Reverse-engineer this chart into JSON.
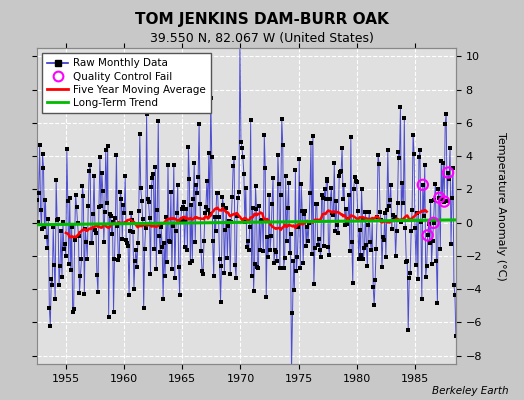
{
  "title": "TOM JENKINS DAM-BURR OAK",
  "subtitle": "39.550 N, 82.067 W (United States)",
  "ylabel": "Temperature Anomaly (°C)",
  "credit": "Berkeley Earth",
  "xlim": [
    1952.5,
    1988.5
  ],
  "ylim": [
    -8.5,
    10.5
  ],
  "yticks": [
    -8,
    -6,
    -4,
    -2,
    0,
    2,
    4,
    6,
    8,
    10
  ],
  "xticks": [
    1955,
    1960,
    1965,
    1970,
    1975,
    1980,
    1985
  ],
  "bg_color": "#c8c8c8",
  "plot_bg_color": "#e0e0e0",
  "grid_color": "#ffffff",
  "raw_line_color": "#3333cc",
  "raw_marker_color": "#000000",
  "moving_avg_color": "#ff0000",
  "trend_color": "#00bb00",
  "qc_fail_color": "#ff00ff",
  "seed": 42,
  "n_months": 432,
  "start_year": 1952.5,
  "title_fontsize": 11,
  "subtitle_fontsize": 9,
  "tick_labelsize": 8,
  "legend_fontsize": 7.5
}
